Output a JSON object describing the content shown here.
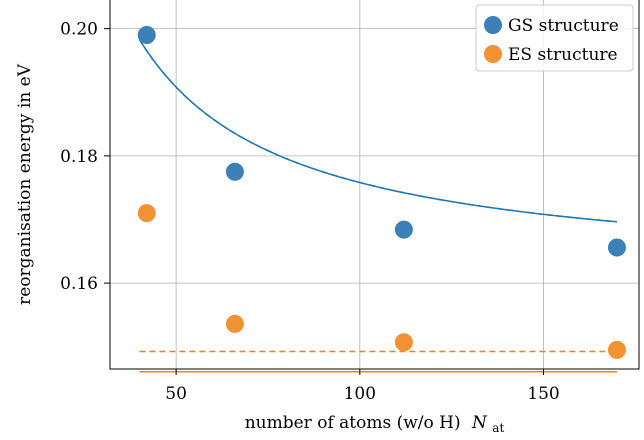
{
  "chart_data": {
    "type": "scatter",
    "xlabel": "number of atoms (w/o H)",
    "xlabel_symbol": "N",
    "xlabel_subscript": "at",
    "ylabel": "reorganisation energy in eV",
    "xlim": [
      32,
      176
    ],
    "ylim": [
      0.1465,
      0.2045
    ],
    "xticks": [
      50,
      100,
      150
    ],
    "xtick_labels": [
      "50",
      "100",
      "150"
    ],
    "yticks": [
      0.16,
      0.18,
      0.2
    ],
    "ytick_labels": [
      "0.16",
      "0.18",
      "0.20"
    ],
    "grid": true,
    "legend_position": "top-right",
    "series": [
      {
        "name": "GS structure",
        "color": "#1f77b4",
        "marker_color": "#3b80b7",
        "x": [
          42,
          66,
          112,
          170
        ],
        "y": [
          0.199,
          0.1775,
          0.1684,
          0.1656
        ],
        "fit_solid": {
          "a": 0.16081,
          "b": 1.5,
          "domain": [
            40,
            170
          ]
        },
        "fit_dashed": {
          "a": 0.16081,
          "b": 1.5,
          "domain": [
            40,
            170
          ]
        }
      },
      {
        "name": "ES structure",
        "color": "#ff7f0e",
        "marker_color": "#f39233",
        "x": [
          42,
          66,
          112,
          170
        ],
        "y": [
          0.171,
          0.1536,
          0.1507,
          0.1495
        ],
        "fit_solid": {
          "a": 0.14607,
          "b": 0.0036,
          "c": 2,
          "domain": [
            40,
            170
          ]
        },
        "fit_dashed": {
          "a": 0.14925,
          "b": 0.00015,
          "c": 3,
          "domain": [
            40,
            170
          ]
        }
      }
    ]
  }
}
